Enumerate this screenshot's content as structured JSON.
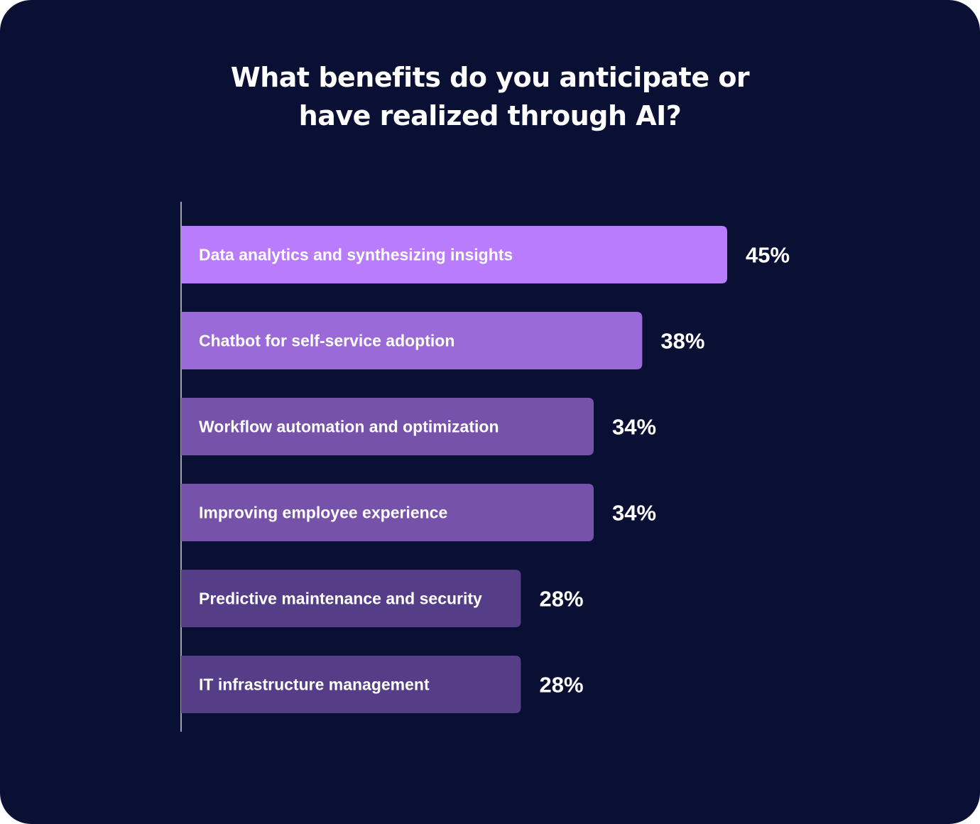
{
  "chart_data": {
    "type": "bar",
    "orientation": "horizontal",
    "title_lines": [
      "What benefits do you anticipate or",
      "have realized through AI?"
    ],
    "categories": [
      "Data analytics and synthesizing insights",
      "Chatbot for self-service adoption",
      "Workflow automation and optimization",
      "Improving employee experience",
      "Predictive maintenance and security",
      "IT infrastructure management"
    ],
    "values": [
      45,
      38,
      34,
      34,
      28,
      28
    ],
    "value_labels": [
      "45%",
      "38%",
      "34%",
      "34%",
      "28%",
      "28%"
    ],
    "unit": "%",
    "xlim": [
      0,
      45
    ],
    "grid": false,
    "legend": "none",
    "colors": [
      "#b87cfc",
      "#9a6ad8",
      "#7652ab",
      "#7652ab",
      "#553d87",
      "#553d87"
    ],
    "background": "#0a1033",
    "axis_color": "#d0d0d8"
  }
}
